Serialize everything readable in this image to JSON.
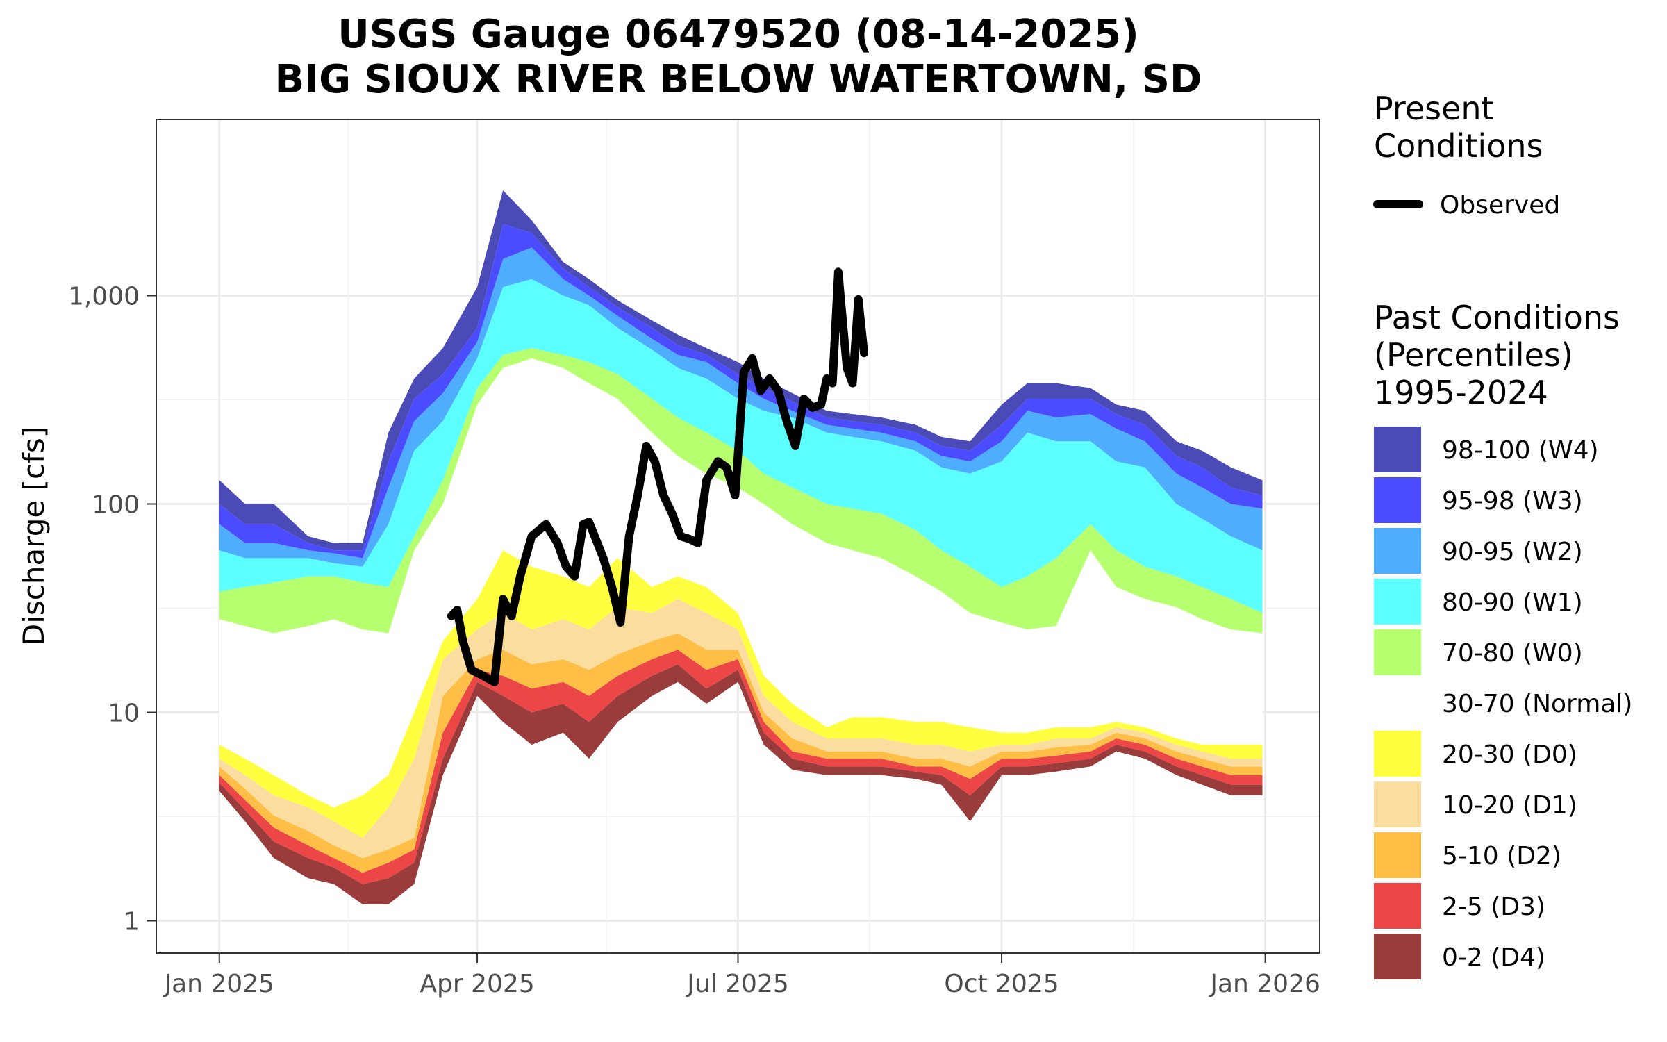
{
  "chart_data": {
    "type": "area",
    "title": [
      "USGS Gauge 06479520 (08-14-2025)",
      "BIG SIOUX RIVER BELOW WATERTOWN, SD"
    ],
    "ylabel": "Discharge [cfs]",
    "xlabel": "",
    "y_scale": "log10",
    "ylim": [
      0.7,
      7000
    ],
    "xlim": [
      "2024-12-10",
      "2026-01-20"
    ],
    "y_ticks": [
      1,
      10,
      100,
      1000
    ],
    "y_tick_labels": [
      "1",
      "10",
      "100",
      "1,000"
    ],
    "x_ticks": [
      "2025-01-01",
      "2025-04-01",
      "2025-07-01",
      "2025-10-01",
      "2026-01-01"
    ],
    "x_tick_labels": [
      "Jan 2025",
      "Apr 2025",
      "Jul 2025",
      "Oct 2025",
      "Jan 2026"
    ],
    "grid": true,
    "legend_present": {
      "title": [
        "Present",
        "Conditions"
      ],
      "entries": [
        {
          "label": "Observed",
          "color": "#000000"
        }
      ]
    },
    "legend_past": {
      "title": [
        "Past Conditions",
        "(Percentiles)",
        "1995-2024"
      ],
      "entries": [
        {
          "label": "98-100 (W4)",
          "color": "#4b4bb7"
        },
        {
          "label": "95-98 (W3)",
          "color": "#4b4bff"
        },
        {
          "label": "90-95 (W2)",
          "color": "#4fadff"
        },
        {
          "label": "80-90 (W1)",
          "color": "#5cffff"
        },
        {
          "label": "70-80 (W0)",
          "color": "#b6ff6e"
        },
        {
          "label": "30-70 (Normal)",
          "color": "#ffffff"
        },
        {
          "label": "20-30 (D0)",
          "color": "#ffff40"
        },
        {
          "label": "10-20 (D1)",
          "color": "#fcdda0"
        },
        {
          "label": "5-10 (D2)",
          "color": "#ffbf47"
        },
        {
          "label": "2-5 (D3)",
          "color": "#ec4646"
        },
        {
          "label": "0-2 (D4)",
          "color": "#9a3c3c"
        }
      ]
    },
    "percentile_dates": [
      "2025-01-01",
      "2025-01-10",
      "2025-01-20",
      "2025-02-01",
      "2025-02-10",
      "2025-02-20",
      "2025-03-01",
      "2025-03-10",
      "2025-03-20",
      "2025-04-01",
      "2025-04-10",
      "2025-04-20",
      "2025-05-01",
      "2025-05-10",
      "2025-05-20",
      "2025-06-01",
      "2025-06-10",
      "2025-06-20",
      "2025-07-01",
      "2025-07-10",
      "2025-07-20",
      "2025-08-01",
      "2025-08-10",
      "2025-08-20",
      "2025-09-01",
      "2025-09-10",
      "2025-09-20",
      "2025-10-01",
      "2025-10-10",
      "2025-10-20",
      "2025-11-01",
      "2025-11-10",
      "2025-11-20",
      "2025-12-01",
      "2025-12-10",
      "2025-12-20",
      "2025-12-31"
    ],
    "percentile_bounds": [
      {
        "name": "p0",
        "values": [
          4.2,
          3.0,
          2.0,
          1.6,
          1.5,
          1.2,
          1.2,
          1.5,
          5.0,
          12,
          9,
          7,
          8,
          6,
          9,
          12,
          14,
          11,
          14,
          7,
          5.3,
          5.0,
          5.0,
          5.0,
          4.8,
          4.5,
          3.0,
          5.0,
          5.0,
          5.2,
          5.5,
          6.5,
          6.0,
          5.0,
          4.5,
          4.0,
          4.0
        ]
      },
      {
        "name": "p2",
        "values": [
          4.6,
          3.4,
          2.4,
          2.0,
          1.8,
          1.5,
          1.6,
          1.9,
          6.0,
          14,
          12,
          10,
          11,
          9,
          12,
          15,
          17,
          13,
          16,
          8,
          6,
          5.5,
          5.5,
          5.5,
          5.2,
          5.0,
          4.0,
          5.5,
          5.5,
          5.7,
          6.0,
          7.0,
          6.5,
          5.5,
          5.0,
          4.5,
          4.5
        ]
      },
      {
        "name": "p5",
        "values": [
          5.0,
          3.8,
          2.8,
          2.3,
          2.0,
          1.7,
          1.9,
          2.2,
          8.0,
          16,
          15,
          13,
          14,
          12,
          15,
          18,
          20,
          16,
          18,
          9,
          6.5,
          6.0,
          6.0,
          6.0,
          5.5,
          5.5,
          4.8,
          6.0,
          6.0,
          6.2,
          6.5,
          7.5,
          7.0,
          6.0,
          5.5,
          5.0,
          5.0
        ]
      },
      {
        "name": "p10",
        "values": [
          5.5,
          4.3,
          3.2,
          2.7,
          2.3,
          2.0,
          2.2,
          2.5,
          12,
          18,
          20,
          17,
          18,
          16,
          19,
          22,
          24,
          20,
          20,
          10,
          7.5,
          6.5,
          6.5,
          6.5,
          6.0,
          6.0,
          5.5,
          6.5,
          6.5,
          6.8,
          7.0,
          8.0,
          7.5,
          6.5,
          6.0,
          5.5,
          5.5
        ]
      },
      {
        "name": "p20",
        "values": [
          6.0,
          5.0,
          4.0,
          3.5,
          3.0,
          2.5,
          3.5,
          6.0,
          18,
          25,
          30,
          25,
          28,
          25,
          32,
          30,
          35,
          30,
          25,
          12,
          9,
          7.5,
          7.5,
          7.5,
          7.0,
          7.0,
          6.5,
          7.0,
          7.0,
          7.5,
          7.5,
          8.5,
          8.0,
          7.0,
          6.5,
          6.0,
          6.0
        ]
      },
      {
        "name": "p30",
        "values": [
          7.0,
          6.0,
          5.0,
          4.0,
          3.5,
          4.0,
          5.0,
          10,
          22,
          35,
          60,
          50,
          45,
          40,
          55,
          40,
          45,
          40,
          30,
          15,
          11,
          8.5,
          9.5,
          9.5,
          9,
          9,
          8.5,
          8,
          8,
          8.5,
          8.5,
          9,
          8.5,
          7.5,
          7,
          7,
          7
        ]
      },
      {
        "name": "p70",
        "values": [
          28,
          26,
          24,
          26,
          28,
          25,
          24,
          60,
          100,
          300,
          450,
          500,
          450,
          380,
          320,
          220,
          170,
          140,
          120,
          100,
          80,
          65,
          60,
          55,
          45,
          38,
          30,
          27,
          25,
          26,
          60,
          40,
          35,
          32,
          28,
          25,
          24
        ]
      },
      {
        "name": "p80",
        "values": [
          38,
          40,
          42,
          45,
          45,
          42,
          40,
          70,
          130,
          360,
          520,
          560,
          520,
          480,
          420,
          320,
          260,
          220,
          180,
          140,
          120,
          100,
          95,
          90,
          75,
          60,
          50,
          40,
          45,
          55,
          80,
          60,
          50,
          45,
          40,
          35,
          30
        ]
      },
      {
        "name": "p90",
        "values": [
          60,
          55,
          55,
          55,
          52,
          50,
          80,
          180,
          250,
          500,
          1100,
          1200,
          1000,
          900,
          700,
          550,
          450,
          400,
          320,
          280,
          260,
          220,
          210,
          200,
          180,
          150,
          140,
          160,
          220,
          200,
          200,
          160,
          150,
          100,
          85,
          70,
          60
        ]
      },
      {
        "name": "p95",
        "values": [
          80,
          65,
          65,
          60,
          58,
          55,
          120,
          250,
          340,
          600,
          1500,
          1700,
          1200,
          1000,
          800,
          620,
          520,
          480,
          380,
          320,
          280,
          240,
          230,
          220,
          200,
          170,
          160,
          200,
          280,
          260,
          270,
          230,
          200,
          140,
          120,
          100,
          95
        ]
      },
      {
        "name": "p98",
        "values": [
          100,
          80,
          80,
          65,
          60,
          60,
          160,
          320,
          420,
          700,
          2200,
          2000,
          1350,
          1100,
          880,
          700,
          580,
          520,
          420,
          360,
          310,
          260,
          250,
          240,
          220,
          190,
          180,
          240,
          320,
          320,
          320,
          270,
          240,
          170,
          150,
          120,
          110
        ]
      },
      {
        "name": "p100",
        "values": [
          130,
          100,
          100,
          70,
          65,
          65,
          220,
          400,
          560,
          1100,
          3200,
          2300,
          1450,
          1200,
          950,
          760,
          650,
          560,
          480,
          400,
          340,
          280,
          270,
          260,
          240,
          210,
          200,
          300,
          380,
          380,
          360,
          300,
          280,
          200,
          180,
          150,
          130
        ]
      }
    ],
    "series": [
      {
        "name": "Observed",
        "x": [
          "2025-03-23",
          "2025-03-25",
          "2025-03-27",
          "2025-03-30",
          "2025-04-03",
          "2025-04-07",
          "2025-04-10",
          "2025-04-13",
          "2025-04-16",
          "2025-04-20",
          "2025-04-25",
          "2025-04-29",
          "2025-05-02",
          "2025-05-05",
          "2025-05-08",
          "2025-05-10",
          "2025-05-12",
          "2025-05-15",
          "2025-05-18",
          "2025-05-21",
          "2025-05-24",
          "2025-05-27",
          "2025-05-30",
          "2025-06-02",
          "2025-06-05",
          "2025-06-08",
          "2025-06-11",
          "2025-06-14",
          "2025-06-17",
          "2025-06-20",
          "2025-06-24",
          "2025-06-27",
          "2025-06-30",
          "2025-07-03",
          "2025-07-06",
          "2025-07-09",
          "2025-07-12",
          "2025-07-15",
          "2025-07-18",
          "2025-07-21",
          "2025-07-24",
          "2025-07-27",
          "2025-07-30",
          "2025-08-01",
          "2025-08-03",
          "2025-08-05",
          "2025-08-08",
          "2025-08-10",
          "2025-08-12",
          "2025-08-14"
        ],
        "values": [
          29,
          31,
          22,
          16,
          15,
          14,
          35,
          29,
          45,
          70,
          80,
          65,
          50,
          45,
          80,
          82,
          70,
          55,
          40,
          27,
          70,
          110,
          190,
          160,
          110,
          90,
          70,
          68,
          65,
          130,
          160,
          150,
          110,
          430,
          500,
          350,
          400,
          350,
          250,
          190,
          320,
          290,
          300,
          400,
          380,
          1300,
          450,
          380,
          960,
          530
        ]
      }
    ]
  }
}
